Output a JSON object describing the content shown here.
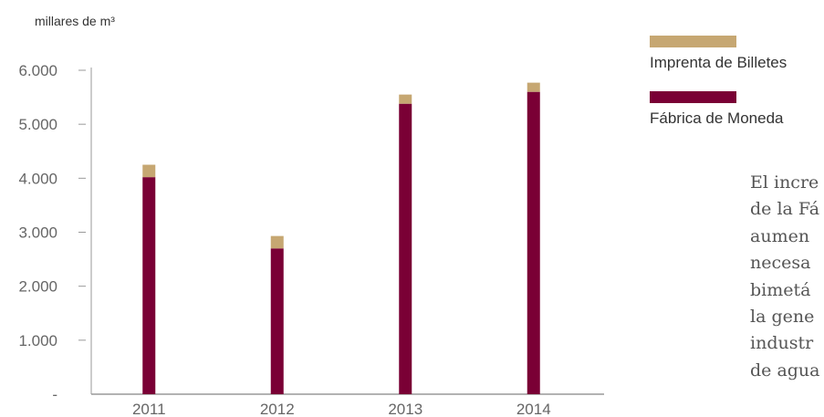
{
  "unit_label": "millares de m³",
  "chart_data": {
    "type": "bar",
    "stacked": true,
    "categories": [
      "2011",
      "2012",
      "2013",
      "2014"
    ],
    "series": [
      {
        "name": "Fábrica de Moneda",
        "values": [
          4020,
          2700,
          5380,
          5600
        ]
      },
      {
        "name": "Imprenta de Billetes",
        "values": [
          230,
          230,
          170,
          170
        ]
      }
    ],
    "yticks": [
      "6.000",
      "5.000",
      "4.000",
      "3.000",
      "2.000",
      "1.000",
      "-"
    ],
    "ylim": [
      0,
      6000
    ],
    "grid": false,
    "legend_position": "right"
  },
  "colors": {
    "Fábrica de Moneda": "#7a0035",
    "Imprenta de Billetes": "#c6a772",
    "axis": "#999999"
  },
  "legend": [
    {
      "label": "Imprenta de Billetes",
      "color": "#c6a772"
    },
    {
      "label": "Fábrica de Moneda",
      "color": "#7a0035"
    }
  ],
  "side_text": [
    "El incre",
    "de la Fá",
    "aumen",
    "necesa",
    "bimetá",
    "la gene",
    "industr",
    "de agua"
  ]
}
